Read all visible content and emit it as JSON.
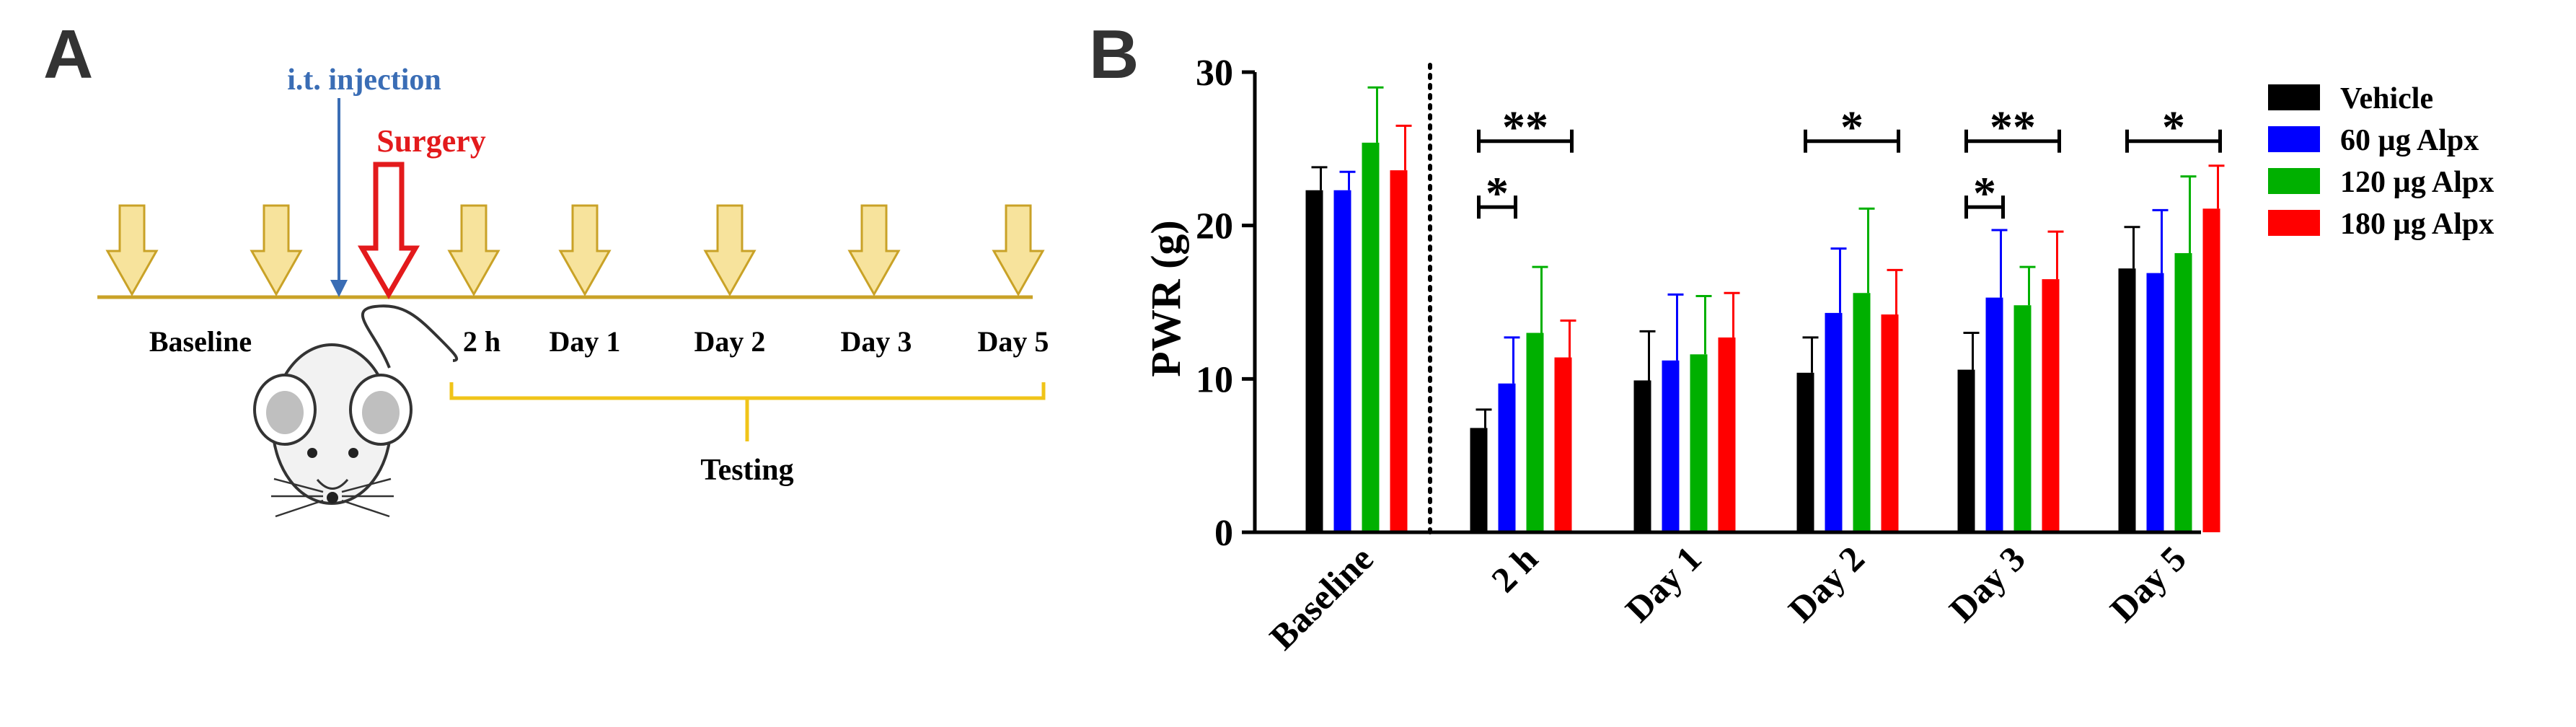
{
  "panel_a": {
    "letter": "A",
    "injection_label": "i.t. injection",
    "surgery_label": "Surgery",
    "timepoints": [
      "Baseline",
      "2 h",
      "Day 1",
      "Day 2",
      "Day 3",
      "Day 5"
    ],
    "testing_label": "Testing",
    "colors": {
      "injection": "#3a6db5",
      "surgery": "#e31a1c",
      "timeline": "#c9a227",
      "arrow_fill": "#f7e39c",
      "arrow_stroke": "#c9a227"
    }
  },
  "panel_b": {
    "letter": "B"
  },
  "chart_data": {
    "type": "bar",
    "ylabel": "PWR (g)",
    "xlabel": "",
    "ylim": [
      0,
      30
    ],
    "yticks": [
      0,
      10,
      20,
      30
    ],
    "categories": [
      "Baseline",
      "2 h",
      "Day 1",
      "Day 2",
      "Day 3",
      "Day 5"
    ],
    "series": [
      {
        "name": "Vehicle",
        "color": "#000000",
        "values": [
          22.3,
          6.8,
          9.9,
          10.4,
          10.6,
          17.2
        ],
        "errors": [
          1.5,
          1.2,
          3.2,
          2.3,
          2.4,
          2.7
        ]
      },
      {
        "name": "60 µg Alpx",
        "color": "#0000ff",
        "values": [
          22.3,
          9.7,
          11.2,
          14.3,
          15.3,
          16.9
        ],
        "errors": [
          1.2,
          3.0,
          4.3,
          4.2,
          4.4,
          4.1
        ]
      },
      {
        "name": "120 µg Alpx",
        "color": "#00b000",
        "values": [
          25.4,
          13.0,
          11.6,
          15.6,
          14.8,
          18.2
        ],
        "errors": [
          3.6,
          4.3,
          3.8,
          5.5,
          2.5,
          5.0
        ]
      },
      {
        "name": "180 µg Alpx",
        "color": "#ff0000",
        "values": [
          23.6,
          11.4,
          12.7,
          14.2,
          16.5,
          21.1
        ],
        "errors": [
          2.9,
          2.4,
          2.9,
          2.9,
          3.1,
          2.8
        ]
      }
    ],
    "separator_after": "Baseline",
    "significance": [
      {
        "category": "2 h",
        "from": "Vehicle",
        "to": "180 µg Alpx",
        "label": "**",
        "y": 25.5
      },
      {
        "category": "2 h",
        "from": "Vehicle",
        "to": "60 µg Alpx",
        "label": "*",
        "y": 21.2
      },
      {
        "category": "Day 2",
        "from": "Vehicle",
        "to": "180 µg Alpx",
        "label": "*",
        "y": 25.5
      },
      {
        "category": "Day 3",
        "from": "Vehicle",
        "to": "180 µg Alpx",
        "label": "**",
        "y": 25.5
      },
      {
        "category": "Day 3",
        "from": "Vehicle",
        "to": "60 µg Alpx",
        "label": "*",
        "y": 21.2
      },
      {
        "category": "Day 5",
        "from": "Vehicle",
        "to": "180 µg Alpx",
        "label": "*",
        "y": 25.5
      }
    ],
    "legend_position": "right"
  }
}
